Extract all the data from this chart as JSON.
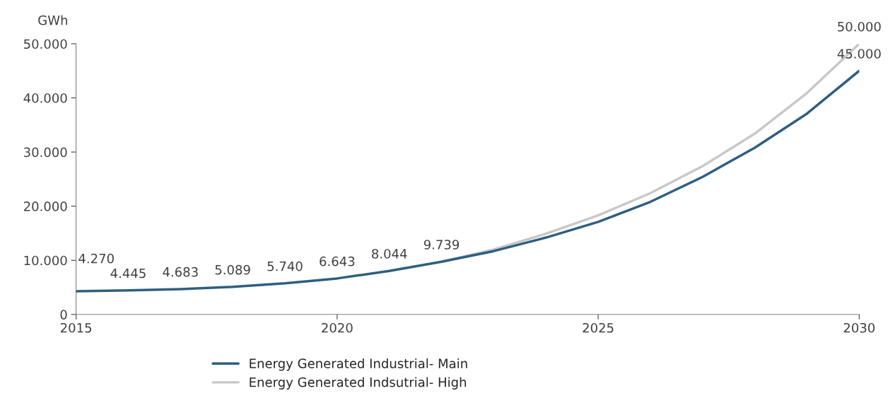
{
  "chart_data": {
    "type": "line",
    "ylabel": "GWh",
    "x": [
      2015,
      2016,
      2017,
      2018,
      2019,
      2020,
      2021,
      2022,
      2023,
      2024,
      2025,
      2026,
      2027,
      2028,
      2029,
      2030
    ],
    "series": [
      {
        "name": "Energy Generated Industrial- Main",
        "color": "#2e5f7f",
        "values": [
          4270,
          4445,
          4683,
          5089,
          5740,
          6643,
          8044,
          9739,
          11700,
          14200,
          17100,
          20800,
          25400,
          30800,
          37100,
          45000
        ],
        "value_labels": [
          "4.270",
          "4.445",
          "4.683",
          "5.089",
          "5.740",
          "6.643",
          "8.044",
          "9.739",
          null,
          null,
          null,
          null,
          null,
          null,
          null,
          "45.000"
        ]
      },
      {
        "name": "Energy Generated Indsutrial- High",
        "color": "#c8c8c8",
        "values": [
          null,
          null,
          null,
          null,
          null,
          null,
          null,
          9739,
          12000,
          14900,
          18300,
          22400,
          27400,
          33400,
          40900,
          50000
        ],
        "value_labels": [
          null,
          null,
          null,
          null,
          null,
          null,
          null,
          null,
          null,
          null,
          null,
          null,
          null,
          null,
          null,
          "50.000"
        ]
      }
    ],
    "xlim": [
      2015,
      2030
    ],
    "xticks": [
      2015,
      2020,
      2025,
      2030
    ],
    "ylim": [
      0,
      50000
    ],
    "yticks": [
      0,
      {
        "value": 10000,
        "label": "10.000"
      },
      {
        "value": 20000,
        "label": "20.000"
      },
      {
        "value": 30000,
        "label": "30.000"
      },
      {
        "value": 40000,
        "label": "40.000"
      },
      {
        "value": 50000,
        "label": "50.000"
      }
    ],
    "grid": false,
    "legend": "bottom",
    "marker": "none",
    "line_style": "solid"
  }
}
